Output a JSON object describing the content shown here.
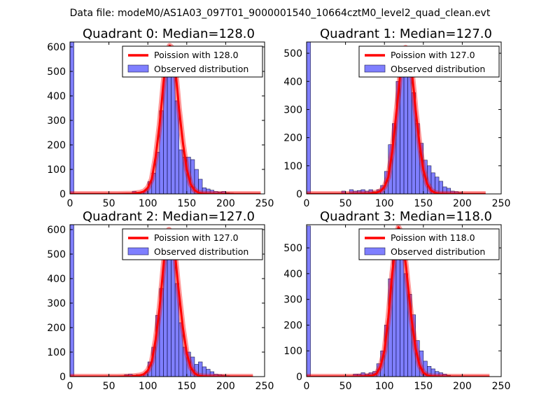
{
  "figure": {
    "suptitle": "Data file: modeM0/AS1A03_097T01_9000001540_10664cztM0_level2_quad_clean.evt"
  },
  "chart_data": [
    {
      "type": "bar",
      "title": "Quadrant 0: Median=128.0",
      "median": 128.0,
      "xlim": [
        0,
        250
      ],
      "ylim": [
        0,
        620
      ],
      "xticks": [
        0,
        50,
        100,
        150,
        200,
        250
      ],
      "yticks": [
        0,
        100,
        200,
        300,
        400,
        500,
        600
      ],
      "xlabel": "",
      "ylabel": "",
      "legend": {
        "position": "top-right",
        "entries": [
          "Poission with 128.0",
          "Observed distribution"
        ]
      },
      "histogram": {
        "name": "Observed distribution",
        "bin_edges": [
          0,
          5,
          10,
          15,
          20,
          25,
          30,
          35,
          40,
          45,
          50,
          55,
          60,
          65,
          70,
          75,
          80,
          85,
          90,
          95,
          100,
          105,
          110,
          115,
          120,
          125,
          130,
          135,
          140,
          145,
          150,
          155,
          160,
          165,
          170,
          175,
          180,
          185,
          190,
          195,
          200,
          205,
          210,
          215,
          220,
          225,
          230,
          235,
          240,
          245
        ],
        "counts": [
          625,
          0,
          0,
          0,
          0,
          0,
          0,
          0,
          0,
          0,
          0,
          0,
          0,
          0,
          0,
          0,
          10,
          6,
          8,
          15,
          50,
          85,
          170,
          340,
          500,
          600,
          550,
          380,
          180,
          150,
          150,
          140,
          100,
          60,
          25,
          20,
          15,
          10,
          8,
          10,
          5,
          4,
          3,
          2,
          1,
          0,
          0,
          0,
          0
        ]
      },
      "poisson": {
        "name": "Poission with 128.0",
        "mean": 128.0,
        "x": [
          0,
          60,
          80,
          90,
          95,
          100,
          105,
          110,
          115,
          118,
          120,
          122,
          125,
          128,
          130,
          132,
          135,
          138,
          140,
          145,
          150,
          155,
          160,
          165,
          170,
          180,
          200,
          245
        ],
        "y": [
          0,
          0,
          1,
          5,
          10,
          25,
          60,
          150,
          280,
          380,
          450,
          510,
          580,
          605,
          600,
          580,
          520,
          420,
          350,
          210,
          100,
          40,
          15,
          5,
          1,
          0,
          0,
          0
        ]
      }
    },
    {
      "type": "bar",
      "title": "Quadrant 1: Median=127.0",
      "median": 127.0,
      "xlim": [
        0,
        250
      ],
      "ylim": [
        0,
        540
      ],
      "xticks": [
        0,
        50,
        100,
        150,
        200,
        250
      ],
      "yticks": [
        0,
        100,
        200,
        300,
        400,
        500
      ],
      "xlabel": "",
      "ylabel": "",
      "legend": {
        "position": "top-right",
        "entries": [
          "Poission with 127.0",
          "Observed distribution"
        ]
      },
      "histogram": {
        "name": "Observed distribution",
        "bin_edges": [
          0,
          5,
          10,
          15,
          20,
          25,
          30,
          35,
          40,
          45,
          50,
          55,
          60,
          65,
          70,
          75,
          80,
          85,
          90,
          95,
          100,
          105,
          110,
          115,
          120,
          125,
          130,
          135,
          140,
          145,
          150,
          155,
          160,
          165,
          170,
          175,
          180,
          185,
          190,
          195,
          200,
          205,
          210,
          215,
          220,
          225,
          230
        ],
        "counts": [
          540,
          0,
          0,
          0,
          0,
          0,
          0,
          0,
          0,
          10,
          0,
          15,
          10,
          12,
          15,
          10,
          15,
          8,
          15,
          30,
          80,
          175,
          250,
          400,
          520,
          520,
          470,
          360,
          250,
          180,
          120,
          100,
          75,
          60,
          45,
          25,
          20,
          10,
          8,
          5,
          0,
          0,
          0,
          0,
          0,
          0
        ]
      },
      "poisson": {
        "name": "Poission with 127.0",
        "mean": 127.0,
        "x": [
          0,
          60,
          80,
          90,
          95,
          100,
          105,
          110,
          115,
          118,
          120,
          122,
          125,
          127,
          130,
          132,
          135,
          138,
          140,
          145,
          150,
          155,
          160,
          165,
          170,
          180,
          200,
          230
        ],
        "y": [
          0,
          0,
          1,
          5,
          10,
          25,
          60,
          150,
          280,
          360,
          420,
          460,
          510,
          520,
          510,
          490,
          440,
          360,
          300,
          180,
          85,
          35,
          12,
          4,
          1,
          0,
          0,
          0
        ]
      }
    },
    {
      "type": "bar",
      "title": "Quadrant 2: Median=127.0",
      "median": 127.0,
      "xlim": [
        0,
        250
      ],
      "ylim": [
        0,
        620
      ],
      "xticks": [
        0,
        50,
        100,
        150,
        200,
        250
      ],
      "yticks": [
        0,
        100,
        200,
        300,
        400,
        500,
        600
      ],
      "xlabel": "",
      "ylabel": "",
      "legend": {
        "position": "top-right",
        "entries": [
          "Poission with 127.0",
          "Observed distribution"
        ]
      },
      "histogram": {
        "name": "Observed distribution",
        "bin_edges": [
          0,
          5,
          10,
          15,
          20,
          25,
          30,
          35,
          40,
          45,
          50,
          55,
          60,
          65,
          70,
          75,
          80,
          85,
          90,
          95,
          100,
          105,
          110,
          115,
          120,
          125,
          130,
          135,
          140,
          145,
          150,
          155,
          160,
          165,
          170,
          175,
          180,
          185,
          190,
          195,
          200,
          205,
          210,
          215,
          220,
          225,
          230,
          235
        ],
        "counts": [
          625,
          0,
          0,
          0,
          0,
          0,
          0,
          0,
          0,
          0,
          0,
          0,
          0,
          0,
          8,
          10,
          6,
          8,
          8,
          15,
          60,
          120,
          250,
          360,
          500,
          600,
          550,
          380,
          220,
          120,
          100,
          80,
          50,
          60,
          40,
          30,
          20,
          10,
          8,
          6,
          4,
          2,
          0,
          0,
          0,
          0,
          0
        ]
      },
      "poisson": {
        "name": "Poission with 127.0",
        "mean": 127.0,
        "x": [
          0,
          60,
          80,
          90,
          95,
          100,
          105,
          110,
          115,
          118,
          120,
          122,
          125,
          127,
          130,
          132,
          135,
          138,
          140,
          145,
          150,
          155,
          160,
          165,
          170,
          180,
          200,
          235
        ],
        "y": [
          0,
          0,
          1,
          5,
          10,
          25,
          60,
          150,
          280,
          380,
          450,
          520,
          580,
          600,
          590,
          560,
          500,
          400,
          340,
          200,
          95,
          38,
          14,
          4,
          1,
          0,
          0,
          0
        ]
      }
    },
    {
      "type": "bar",
      "title": "Quadrant 3: Median=118.0",
      "median": 118.0,
      "xlim": [
        0,
        250
      ],
      "ylim": [
        0,
        590
      ],
      "xticks": [
        0,
        50,
        100,
        150,
        200,
        250
      ],
      "yticks": [
        0,
        100,
        200,
        300,
        400,
        500
      ],
      "xlabel": "",
      "ylabel": "",
      "legend": {
        "position": "top-right",
        "entries": [
          "Poission with 118.0",
          "Observed distribution"
        ]
      },
      "histogram": {
        "name": "Observed distribution",
        "bin_edges": [
          0,
          5,
          10,
          15,
          20,
          25,
          30,
          35,
          40,
          45,
          50,
          55,
          60,
          65,
          70,
          75,
          80,
          85,
          90,
          95,
          100,
          105,
          110,
          115,
          120,
          125,
          130,
          135,
          140,
          145,
          150,
          155,
          160,
          165,
          170,
          175,
          180,
          185,
          190,
          195,
          200,
          205,
          210,
          215,
          220,
          225,
          230,
          235
        ],
        "counts": [
          585,
          0,
          0,
          0,
          0,
          0,
          0,
          0,
          0,
          0,
          0,
          0,
          10,
          10,
          15,
          10,
          15,
          20,
          50,
          100,
          200,
          380,
          500,
          560,
          510,
          400,
          320,
          240,
          140,
          100,
          60,
          40,
          30,
          20,
          15,
          10,
          5,
          3,
          2,
          2,
          0,
          0,
          0,
          0,
          0,
          0,
          0
        ]
      },
      "poisson": {
        "name": "Poission with 118.0",
        "mean": 118.0,
        "x": [
          0,
          60,
          75,
          85,
          90,
          95,
          100,
          105,
          110,
          113,
          115,
          118,
          120,
          122,
          125,
          128,
          130,
          135,
          140,
          145,
          150,
          155,
          160,
          170,
          200,
          235
        ],
        "y": [
          0,
          0,
          1,
          4,
          12,
          40,
          100,
          230,
          400,
          480,
          530,
          580,
          570,
          550,
          500,
          420,
          360,
          220,
          110,
          45,
          15,
          5,
          1,
          0,
          0,
          0
        ]
      }
    }
  ]
}
